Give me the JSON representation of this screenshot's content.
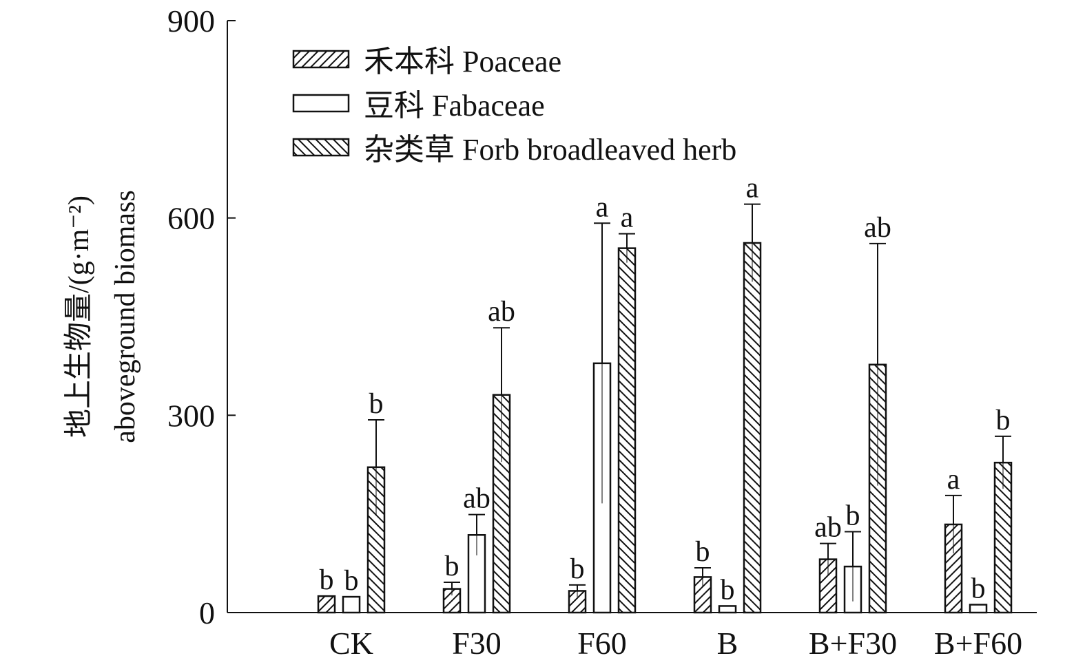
{
  "chart_data": {
    "type": "bar",
    "title": "",
    "xlabel": "",
    "ylabel_cn": "地上生物量/(g·m⁻²)",
    "ylabel_en": "aboveground biomass",
    "ylim": [
      0,
      900
    ],
    "yticks": [
      0,
      300,
      600,
      900
    ],
    "grid": false,
    "legend_position": "top-left",
    "categories": [
      "CK",
      "F30",
      "F60",
      "B",
      "B+F30",
      "B+F60"
    ],
    "series": [
      {
        "name": "禾本科 Poaceae",
        "pattern": "hatch-forward",
        "values": [
          25,
          36,
          33,
          54,
          81,
          134
        ],
        "error_upper": [
          25,
          46,
          42,
          68,
          105,
          178
        ],
        "letters": [
          "b",
          "b",
          "b",
          "b",
          "ab",
          "a"
        ]
      },
      {
        "name": "豆科 Fabaceae",
        "pattern": "none",
        "values": [
          24,
          118,
          379,
          10,
          70,
          12
        ],
        "error_upper": [
          24,
          149,
          592,
          10,
          123,
          12
        ],
        "letters": [
          "b",
          "ab",
          "a",
          "b",
          "b",
          "b"
        ]
      },
      {
        "name": "杂类草 Forb broadleaved herb",
        "pattern": "hatch-back",
        "values": [
          221,
          331,
          554,
          562,
          377,
          228
        ],
        "error_upper": [
          293,
          433,
          576,
          621,
          561,
          268
        ],
        "letters": [
          "b",
          "ab",
          "a",
          "a",
          "ab",
          "b"
        ]
      }
    ]
  }
}
